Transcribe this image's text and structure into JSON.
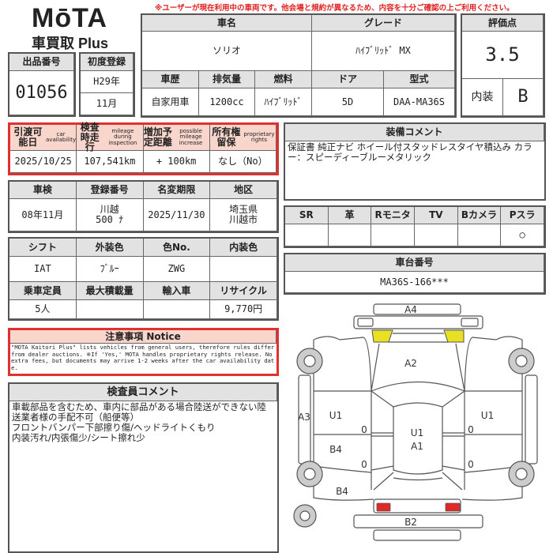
{
  "logo": {
    "brand": "MōTA",
    "sub": "車買取 Plus"
  },
  "warning": "※ユーザーが現在利用中の車両です。他会場と規約が異なるため、内容を十分ご確認の上ご利用ください。",
  "listing": {
    "label": "出品番号",
    "value": "01056"
  },
  "first_reg": {
    "label": "初度登録",
    "year": "H29年",
    "month": "11月"
  },
  "car": {
    "name_label": "車名",
    "name": "ソリオ",
    "grade_label": "グレード",
    "grade": "ﾊｲﾌﾞﾘｯﾄﾞ MX",
    "cols": [
      {
        "label": "車歴",
        "value": "自家用車"
      },
      {
        "label": "排気量",
        "value": "1200cc"
      },
      {
        "label": "燃料",
        "value": "ﾊｲﾌﾞﾘｯﾄﾞ"
      },
      {
        "label": "ドア",
        "value": "5D"
      },
      {
        "label": "型式",
        "value": "DAA-MA36S"
      }
    ]
  },
  "score": {
    "label": "評価点",
    "value": "3.5",
    "interior_label": "内装",
    "interior": "B"
  },
  "availability": [
    {
      "label": "引渡可能日",
      "en": "car availability",
      "value": "2025/10/25"
    },
    {
      "label": "検査時走行",
      "en": "mileage during inspection",
      "value": "107,541km"
    },
    {
      "label": "増加予定距離",
      "en": "possible mileage increase",
      "value": "+ 100km"
    },
    {
      "label": "所有権留保",
      "en": "proprietary rights",
      "value": "なし（No）"
    }
  ],
  "inspection": [
    {
      "label": "車検",
      "value": "08年11月"
    },
    {
      "label": "登録番号",
      "value": "川越\n500 ﾅ"
    },
    {
      "label": "名変期限",
      "value": "2025/11/30"
    },
    {
      "label": "地区",
      "value": "埼玉県\n川越市"
    }
  ],
  "specs1": [
    {
      "label": "シフト",
      "value": "IAT"
    },
    {
      "label": "外装色",
      "value": "ﾌﾞﾙｰ"
    },
    {
      "label": "色No.",
      "value": "ZWG"
    },
    {
      "label": "内装色",
      "value": ""
    }
  ],
  "specs2": [
    {
      "label": "乗車定員",
      "value": "5人"
    },
    {
      "label": "最大積載量",
      "value": ""
    },
    {
      "label": "輸入車",
      "value": ""
    },
    {
      "label": "リサイクル",
      "value": "9,770円"
    }
  ],
  "notice": {
    "title": "注意事項 Notice",
    "text": "\"MOTA Kaitori Plus\" lists vehicles from general users, therefore rules differ from dealer auctions. ※If 'Yes,' MOTA handles proprietary rights release. No extra fees, but documents may arrive 1-2 weeks after the car availability date."
  },
  "inspector": {
    "title": "検査員コメント",
    "text": "車載部品を含むため、車内に部品がある場合陸送ができない陸送業者様の手配不可（船便等）\nフロントバンパー下部擦り傷/ヘッドライトくもり\n内装汚れ/内張傷少/シート擦れ少"
  },
  "equipment": {
    "title": "装備コメント",
    "text": "保証書 純正ナビ ホイール付スタッドレスタイヤ積込み カラー：スピーディーブルーメタリック"
  },
  "options": [
    {
      "label": "SR",
      "value": ""
    },
    {
      "label": "革",
      "value": ""
    },
    {
      "label": "Rモニタ",
      "value": ""
    },
    {
      "label": "TV",
      "value": ""
    },
    {
      "label": "Bカメラ",
      "value": ""
    },
    {
      "label": "Pスラ",
      "value": "○"
    }
  ],
  "chassis": {
    "label": "車台番号",
    "value": "MA36S-166***"
  },
  "diagram": {
    "a4": "A4",
    "a2": "A2",
    "a3": "A3",
    "u1_left": "U1",
    "u1_right": "U1",
    "u1_center": "U1",
    "a1": "A1",
    "b4_door": "B4",
    "b4_rear": "B4",
    "b2": "B2",
    "zero": "0",
    "headlight_color": "#e8e020",
    "taillight_color": "#e02828"
  }
}
